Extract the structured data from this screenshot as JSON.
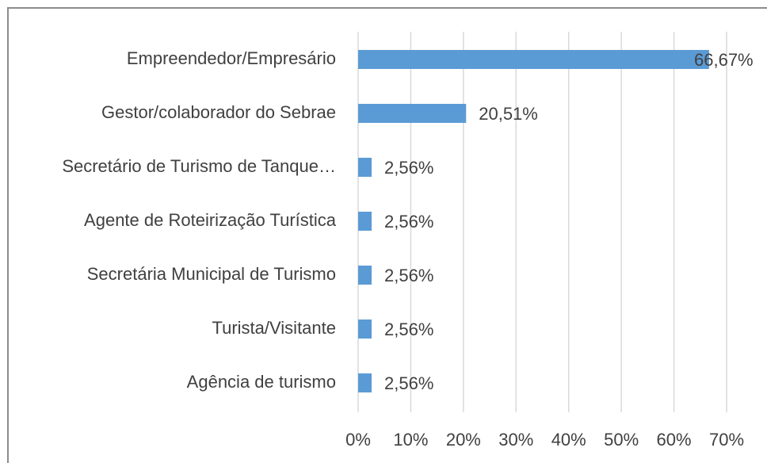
{
  "chart_data": {
    "type": "bar",
    "orientation": "horizontal",
    "categories": [
      "Empreendedor/Empresário",
      "Gestor/colaborador do Sebrae",
      "Secretário de Turismo de Tanque…",
      "Agente de Roteirização Turística",
      "Secretária Municipal de Turismo",
      "Turista/Visitante",
      "Agência de turismo"
    ],
    "values": [
      66.67,
      20.51,
      2.56,
      2.56,
      2.56,
      2.56,
      2.56
    ],
    "value_labels": [
      "66,67%",
      "20,51%",
      "2,56%",
      "2,56%",
      "2,56%",
      "2,56%",
      "2,56%"
    ],
    "color": "#5b9bd5",
    "xlim": [
      0,
      70
    ],
    "xticks": [
      {
        "value": 0,
        "label": "0%"
      },
      {
        "value": 10,
        "label": "10%"
      },
      {
        "value": 20,
        "label": "20%"
      },
      {
        "value": 30,
        "label": "30%"
      },
      {
        "value": 40,
        "label": "40%"
      },
      {
        "value": 50,
        "label": "50%"
      },
      {
        "value": 60,
        "label": "60%"
      },
      {
        "value": 70,
        "label": "70%"
      }
    ],
    "grid": true
  }
}
